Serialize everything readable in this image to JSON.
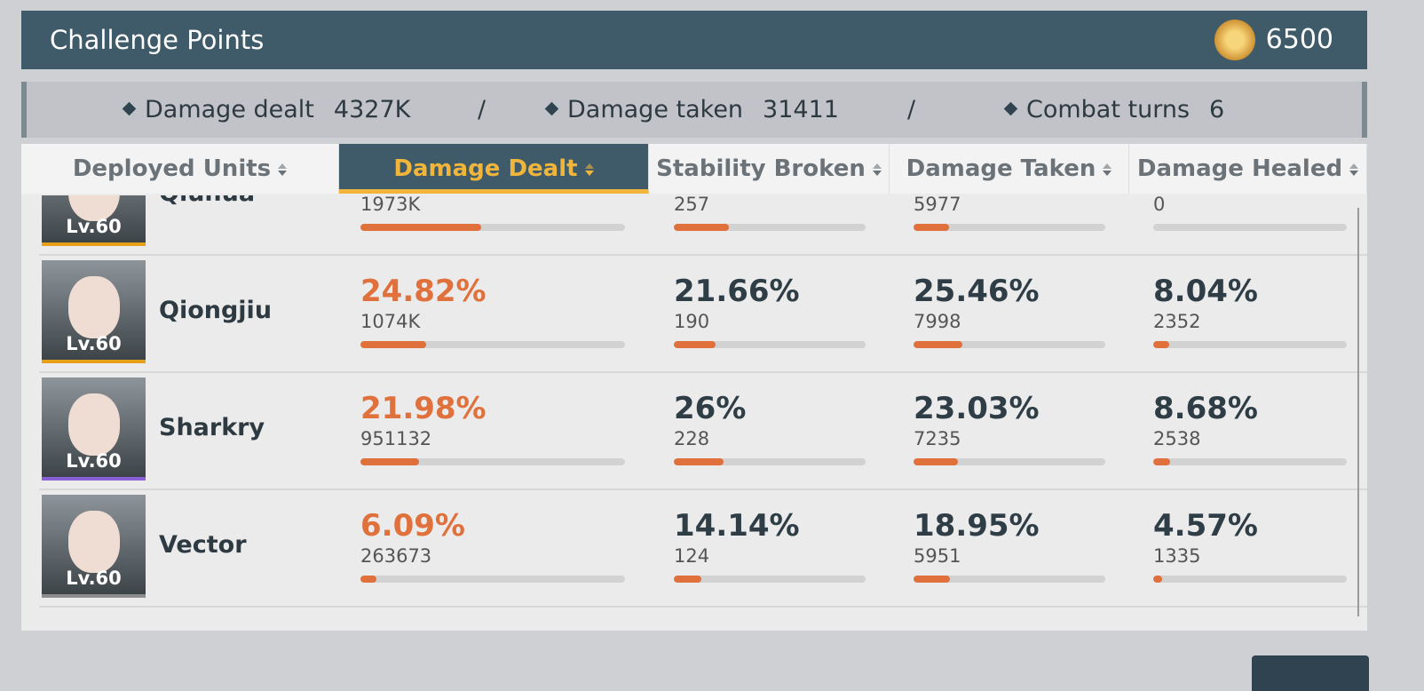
{
  "header": {
    "title": "Challenge Points",
    "points": 6500
  },
  "summary": [
    {
      "label": "Damage dealt",
      "value": "4327K"
    },
    {
      "label": "Damage taken",
      "value": 31411
    },
    {
      "label": "Combat turns",
      "value": 6
    }
  ],
  "separator": "/",
  "tabs": [
    {
      "label": "Deployed Units",
      "active": false
    },
    {
      "label": "Damage Dealt",
      "active": true
    },
    {
      "label": "Stability Broken",
      "active": false
    },
    {
      "label": "Damage Taken",
      "active": false
    },
    {
      "label": "Damage Healed",
      "active": false
    }
  ],
  "rows": [
    {
      "name": "Qiuhua",
      "level": "Lv.60",
      "rarity_color": "#e8a019",
      "cells": [
        {
          "share": 45.6,
          "value": "1973K"
        },
        {
          "share": 28.8,
          "value": 257
        },
        {
          "share": 18.5,
          "value": 5977
        },
        {
          "share": 0,
          "value": 0
        }
      ]
    },
    {
      "name": "Qiongjiu",
      "level": "Lv.60",
      "rarity_color": "#e8a019",
      "cells": [
        {
          "share": 24.82,
          "share_label": "24.82%",
          "value": "1074K"
        },
        {
          "share": 21.66,
          "share_label": "21.66%",
          "value": 190
        },
        {
          "share": 25.46,
          "share_label": "25.46%",
          "value": 7998
        },
        {
          "share": 8.04,
          "share_label": "8.04%",
          "value": 2352
        }
      ]
    },
    {
      "name": "Sharkry",
      "level": "Lv.60",
      "rarity_color": "#8a5ed8",
      "cells": [
        {
          "share": 21.98,
          "share_label": "21.98%",
          "value": 951132
        },
        {
          "share": 26,
          "share_label": "26%",
          "value": 228
        },
        {
          "share": 23.03,
          "share_label": "23.03%",
          "value": 7235
        },
        {
          "share": 8.68,
          "share_label": "8.68%",
          "value": 2538
        }
      ]
    },
    {
      "name": "Vector",
      "level": "Lv.60",
      "rarity_color": "#8c8c8c",
      "cells": [
        {
          "share": 6.09,
          "share_label": "6.09%",
          "value": 263673
        },
        {
          "share": 14.14,
          "share_label": "14.14%",
          "value": 124
        },
        {
          "share": 18.95,
          "share_label": "18.95%",
          "value": 5951
        },
        {
          "share": 4.57,
          "share_label": "4.57%",
          "value": 1335
        }
      ]
    }
  ]
}
